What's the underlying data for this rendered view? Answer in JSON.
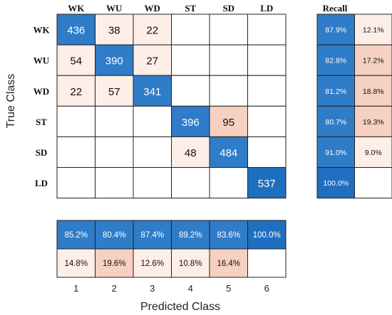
{
  "chart_data": [
    {
      "type": "heatmap",
      "row_labels": [
        "WK",
        "WU",
        "WD",
        "ST",
        "SD",
        "LD"
      ],
      "col_labels": [
        "WK",
        "WU",
        "WD",
        "ST",
        "SD",
        "LD"
      ],
      "matrix": [
        [
          436,
          38,
          22,
          null,
          null,
          null
        ],
        [
          54,
          390,
          27,
          null,
          null,
          null
        ],
        [
          22,
          57,
          341,
          null,
          null,
          null
        ],
        [
          null,
          null,
          null,
          396,
          95,
          null
        ],
        [
          null,
          null,
          null,
          48,
          484,
          null
        ],
        [
          null,
          null,
          null,
          null,
          null,
          537
        ]
      ],
      "ylabel": "True Class"
    },
    {
      "type": "table",
      "title": "Recall",
      "rows": [
        [
          "87.9%",
          "12.1%"
        ],
        [
          "82.8%",
          "17.2%"
        ],
        [
          "81.2%",
          "18.8%"
        ],
        [
          "80.7%",
          "19.3%"
        ],
        [
          "91.0%",
          "9.0%"
        ],
        [
          "100.0%",
          ""
        ]
      ]
    },
    {
      "type": "table",
      "rows": [
        [
          "85.2%",
          "80.4%",
          "87.4%",
          "89.2%",
          "83.6%",
          "100.0%"
        ],
        [
          "14.8%",
          "19.6%",
          "12.6%",
          "10.8%",
          "16.4%",
          ""
        ]
      ],
      "x_ticks": [
        "1",
        "2",
        "3",
        "4",
        "5",
        "6"
      ],
      "xlabel": "Predicted Class"
    }
  ],
  "colors": {
    "correct_blue": "#2f7cc8",
    "correct_blue_dark": "#1f6fc0",
    "pale_pink": "#fdeee7",
    "medium_pink": "#f6d0c0",
    "grid": "#222222"
  }
}
